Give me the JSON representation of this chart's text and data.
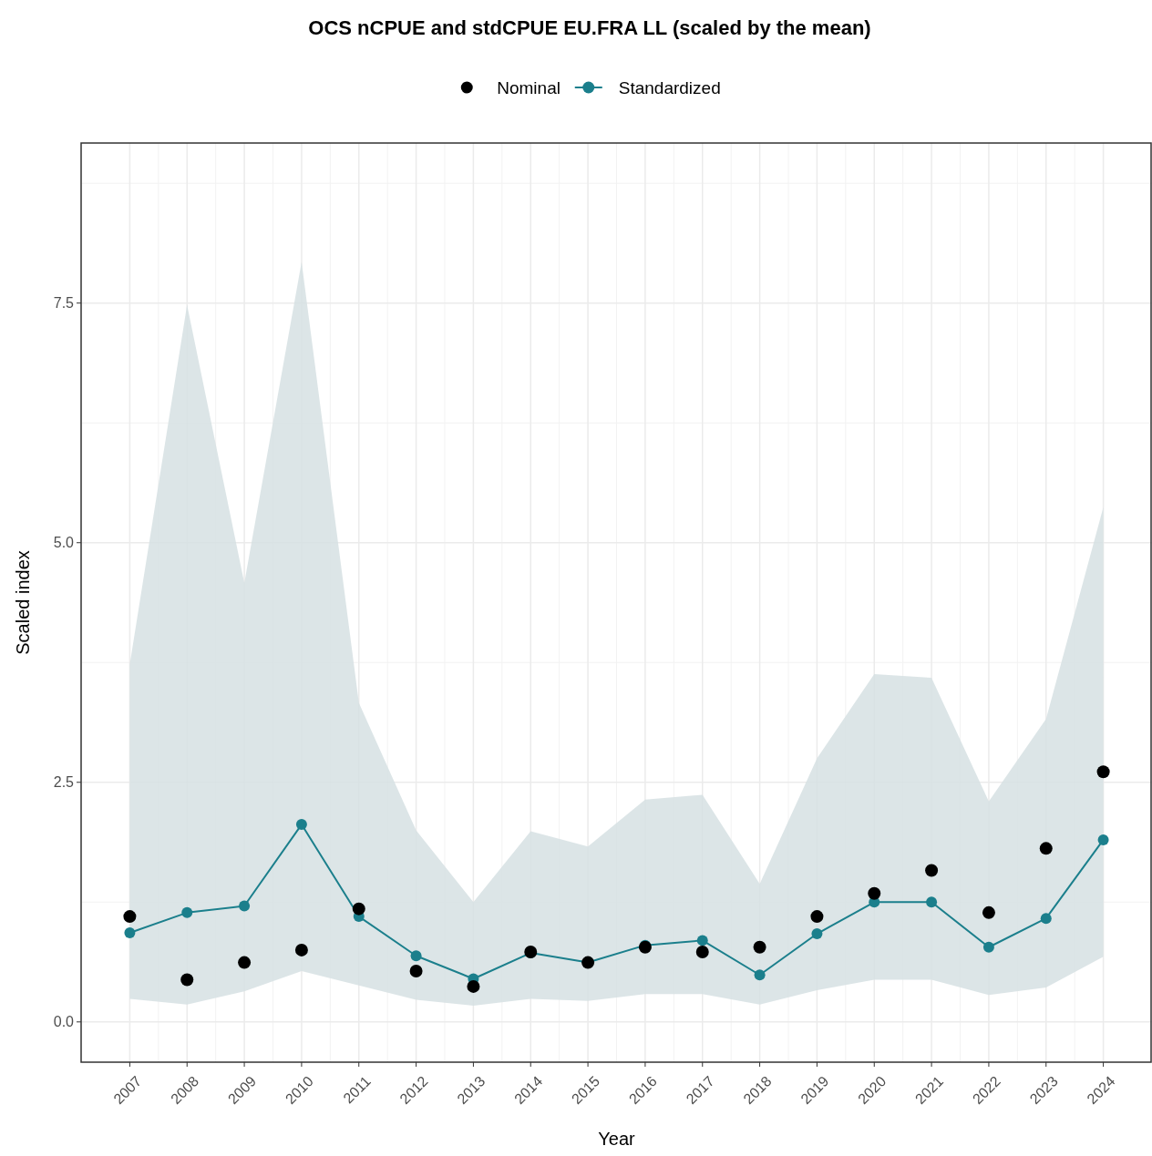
{
  "chart_data": {
    "type": "line",
    "title": "OCS nCPUE and stdCPUE EU.FRA LL (scaled by the mean)",
    "xlabel": "Year",
    "ylabel": "Scaled index",
    "x": [
      2007,
      2008,
      2009,
      2010,
      2011,
      2012,
      2013,
      2014,
      2015,
      2016,
      2017,
      2018,
      2019,
      2020,
      2021,
      2022,
      2023,
      2024
    ],
    "series": [
      {
        "name": "Nominal",
        "type": "scatter",
        "color": "#000000",
        "marker": "circle",
        "values": [
          1.1,
          0.44,
          0.62,
          0.75,
          1.18,
          0.53,
          0.37,
          0.73,
          0.62,
          0.78,
          0.73,
          0.78,
          1.1,
          1.34,
          1.58,
          1.14,
          1.81,
          2.61
        ]
      },
      {
        "name": "Standardized",
        "type": "line",
        "color": "#1b7f8c",
        "marker": "circle",
        "values": [
          0.93,
          1.14,
          1.21,
          2.06,
          1.1,
          0.69,
          0.45,
          0.72,
          0.62,
          0.8,
          0.85,
          0.49,
          0.92,
          1.25,
          1.25,
          0.78,
          1.08,
          1.9
        ],
        "lower": [
          0.24,
          0.18,
          0.32,
          0.53,
          0.38,
          0.23,
          0.17,
          0.24,
          0.22,
          0.29,
          0.29,
          0.18,
          0.33,
          0.44,
          0.44,
          0.28,
          0.36,
          0.68
        ],
        "upper": [
          3.73,
          7.48,
          4.58,
          7.93,
          3.33,
          2.0,
          1.25,
          1.99,
          1.83,
          2.32,
          2.37,
          1.44,
          2.75,
          3.63,
          3.59,
          2.3,
          3.16,
          5.37
        ]
      }
    ],
    "xlim": [
      2006.15,
      2024.85
    ],
    "xticks": [
      2007,
      2008,
      2009,
      2010,
      2011,
      2012,
      2013,
      2014,
      2015,
      2016,
      2017,
      2018,
      2019,
      2020,
      2021,
      2022,
      2023,
      2024
    ],
    "ylim": [
      -0.42,
      9.17
    ],
    "yticks": [
      {
        "value": 0,
        "label": "0.0"
      },
      {
        "value": 2.5,
        "label": "2.5"
      },
      {
        "value": 5,
        "label": "5.0"
      },
      {
        "value": 7.5,
        "label": "7.5"
      }
    ],
    "grid": true,
    "legend": "top"
  }
}
